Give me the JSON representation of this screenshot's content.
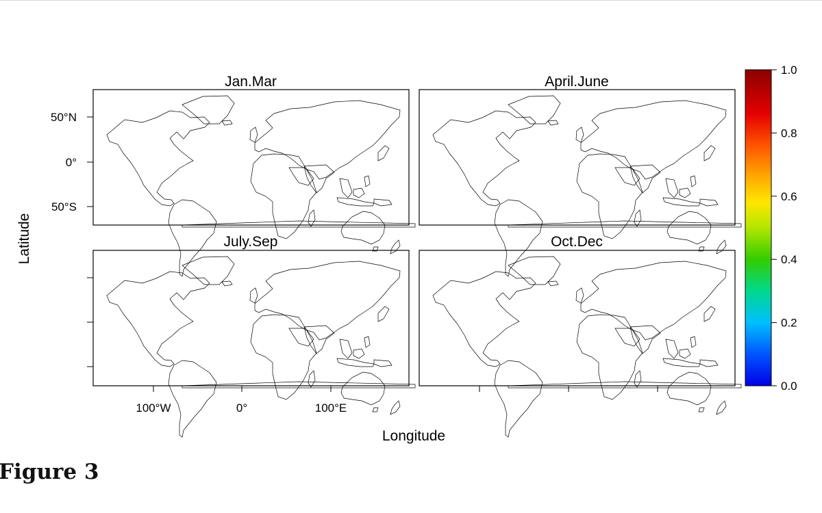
{
  "figure_label": "Figure 3",
  "panels": [
    {
      "id": "jan-mar",
      "title": "Jan.Mar"
    },
    {
      "id": "april-june",
      "title": "April.June"
    },
    {
      "id": "july-sep",
      "title": "July.Sep"
    },
    {
      "id": "oct-dec",
      "title": "Oct.Dec"
    }
  ],
  "axes": {
    "xlabel": "Longitude",
    "ylabel": "Latitude",
    "x_ticks": [
      {
        "value": -100,
        "label": "100°W"
      },
      {
        "value": 0,
        "label": "0°"
      },
      {
        "value": 100,
        "label": "100°E"
      }
    ],
    "y_ticks": [
      {
        "value": 50,
        "label": "50°N"
      },
      {
        "value": 0,
        "label": "0°"
      },
      {
        "value": -50,
        "label": "50°S"
      }
    ],
    "xlim": [
      -168,
      186
    ],
    "ylim": [
      -72,
      85
    ]
  },
  "colorbar": {
    "min": 0.0,
    "max": 1.0,
    "ticks": [
      "0.0",
      "0.2",
      "0.4",
      "0.6",
      "0.8",
      "1.0"
    ],
    "colors": [
      "#0000e6",
      "#00bfff",
      "#00d98c",
      "#33cc00",
      "#b3e600",
      "#ffe600",
      "#ffaa00",
      "#ff5500",
      "#e60000",
      "#8b0000"
    ]
  },
  "chart_data": {
    "type": "heatmap",
    "layout": "2x2 world maps",
    "panels": [
      "Jan.Mar",
      "April.June",
      "July.Sep",
      "Oct.Dec"
    ],
    "xlabel": "Longitude",
    "ylabel": "Latitude",
    "value_range": [
      0.0,
      1.0
    ],
    "legend": "right"
  }
}
